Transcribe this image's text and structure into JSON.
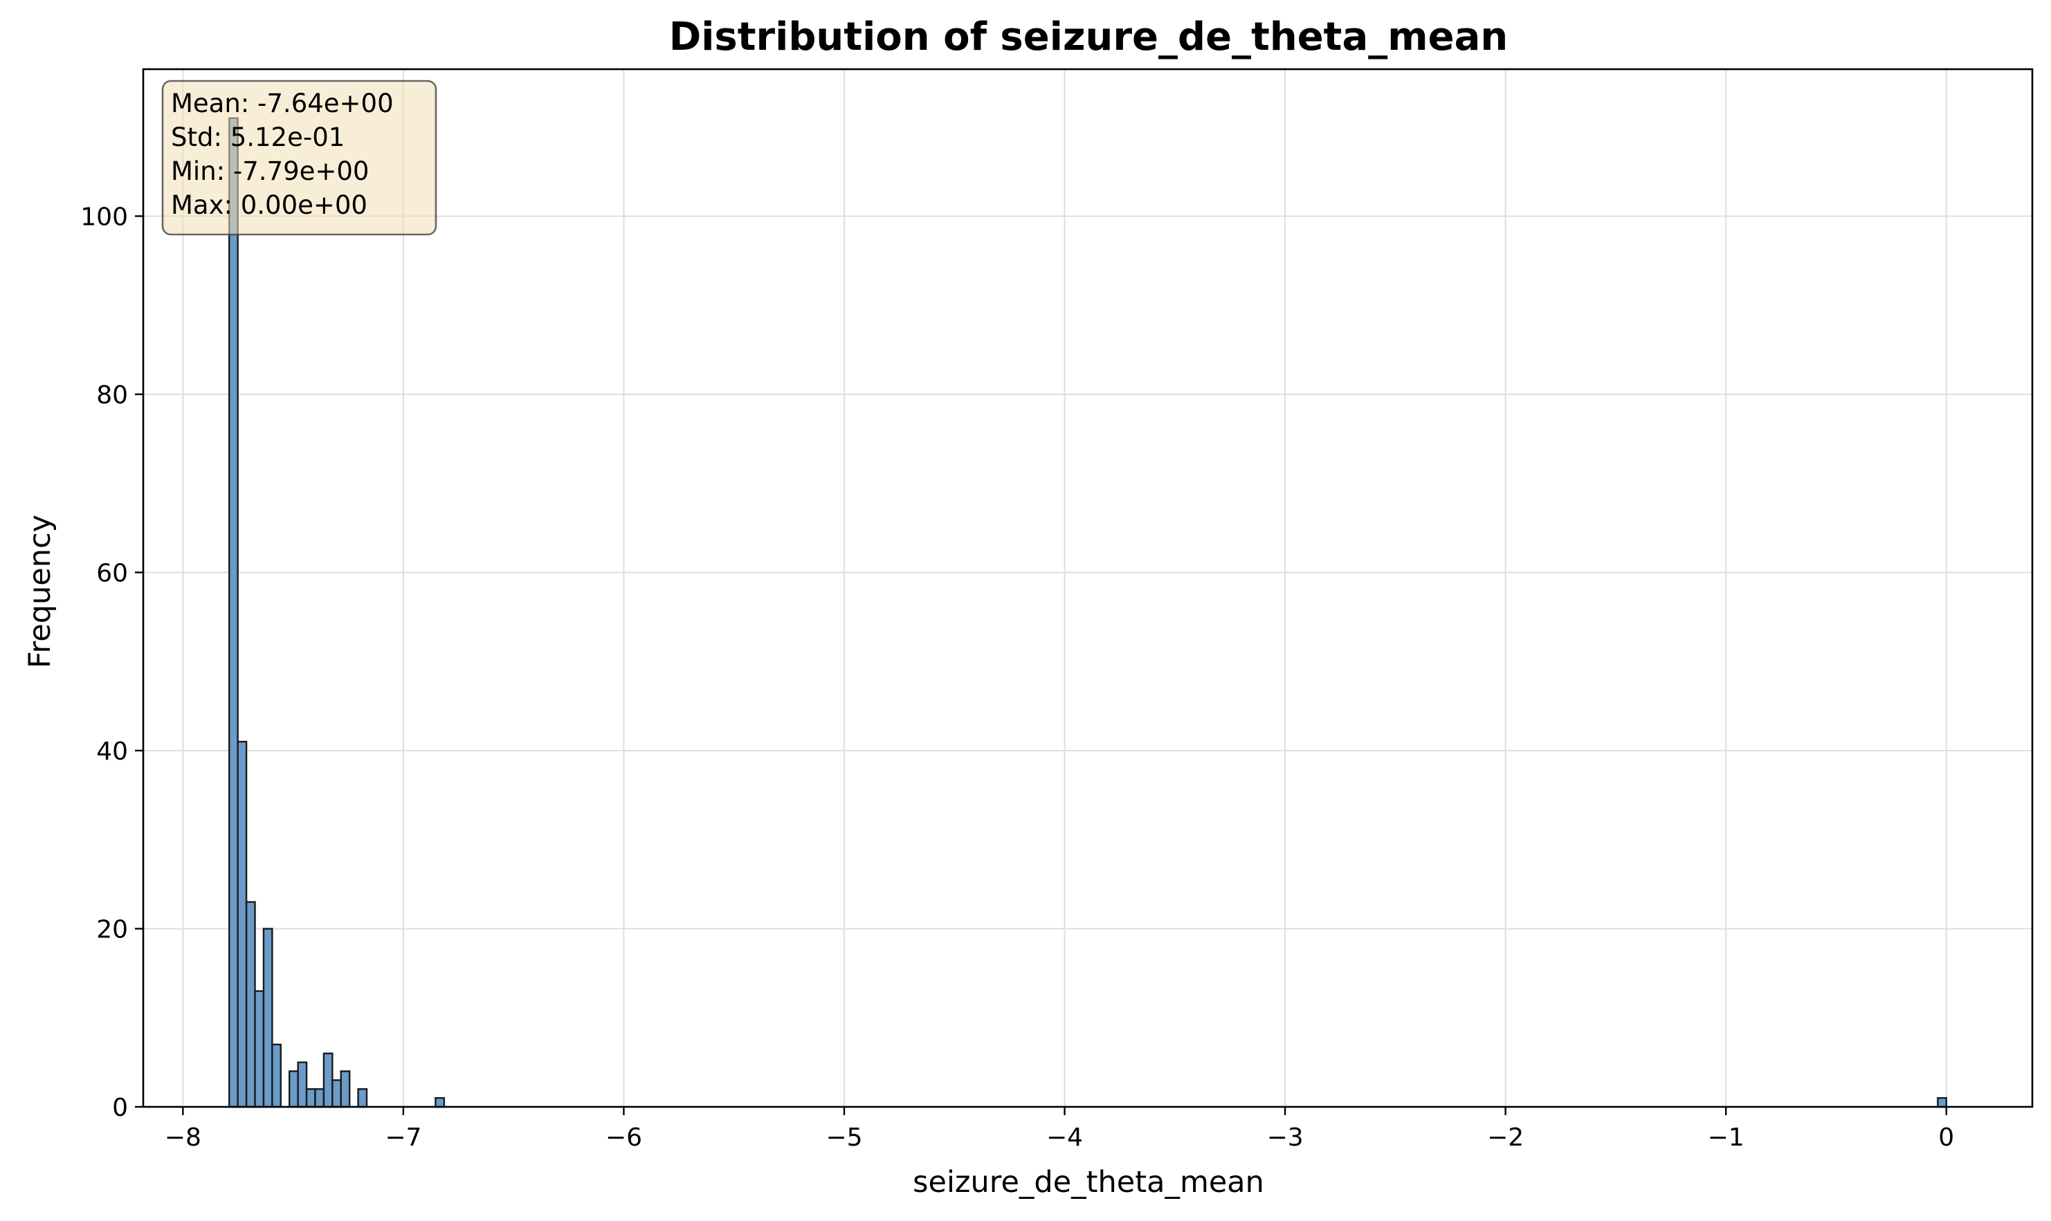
{
  "chart_data": {
    "type": "bar",
    "title": "Distribution of seizure_de_theta_mean",
    "xlabel": "seizure_de_theta_mean",
    "ylabel": "Frequency",
    "xlim": [
      -8.18,
      0.39
    ],
    "ylim": [
      0,
      116.5
    ],
    "x_ticks": [
      {
        "value": -8,
        "label": "−8"
      },
      {
        "value": -7,
        "label": "−7"
      },
      {
        "value": -6,
        "label": "−6"
      },
      {
        "value": -5,
        "label": "−5"
      },
      {
        "value": -4,
        "label": "−4"
      },
      {
        "value": -3,
        "label": "−3"
      },
      {
        "value": -2,
        "label": "−2"
      },
      {
        "value": -1,
        "label": "−1"
      },
      {
        "value": 0,
        "label": "0"
      }
    ],
    "y_ticks": [
      {
        "value": 0,
        "label": "0"
      },
      {
        "value": 20,
        "label": "20"
      },
      {
        "value": 40,
        "label": "40"
      },
      {
        "value": 60,
        "label": "60"
      },
      {
        "value": 80,
        "label": "80"
      },
      {
        "value": 100,
        "label": "100"
      }
    ],
    "grid": true,
    "bars": [
      {
        "x0": -7.79,
        "x1": -7.751,
        "value": 111
      },
      {
        "x0": -7.751,
        "x1": -7.712,
        "value": 41
      },
      {
        "x0": -7.712,
        "x1": -7.673,
        "value": 23
      },
      {
        "x0": -7.673,
        "x1": -7.634,
        "value": 13
      },
      {
        "x0": -7.634,
        "x1": -7.595,
        "value": 20
      },
      {
        "x0": -7.595,
        "x1": -7.556,
        "value": 7
      },
      {
        "x0": -7.517,
        "x1": -7.478,
        "value": 4
      },
      {
        "x0": -7.478,
        "x1": -7.439,
        "value": 5
      },
      {
        "x0": -7.439,
        "x1": -7.4,
        "value": 2
      },
      {
        "x0": -7.4,
        "x1": -7.361,
        "value": 2
      },
      {
        "x0": -7.361,
        "x1": -7.322,
        "value": 6
      },
      {
        "x0": -7.322,
        "x1": -7.283,
        "value": 3
      },
      {
        "x0": -7.283,
        "x1": -7.244,
        "value": 4
      },
      {
        "x0": -7.205,
        "x1": -7.166,
        "value": 2
      },
      {
        "x0": -6.854,
        "x1": -6.815,
        "value": 1
      },
      {
        "x0": -0.039,
        "x1": 0.0,
        "value": 1
      }
    ],
    "bar_color": "#6a9bc9",
    "bar_edge_color": "#1a1a1a",
    "stats_box": {
      "lines": [
        "Mean: -7.64e+00",
        "Std: 5.12e-01",
        "Min: -7.79e+00",
        "Max: 0.00e+00"
      ],
      "placement": "top-left",
      "background": "#f3dfb5",
      "border": "#444444"
    }
  }
}
